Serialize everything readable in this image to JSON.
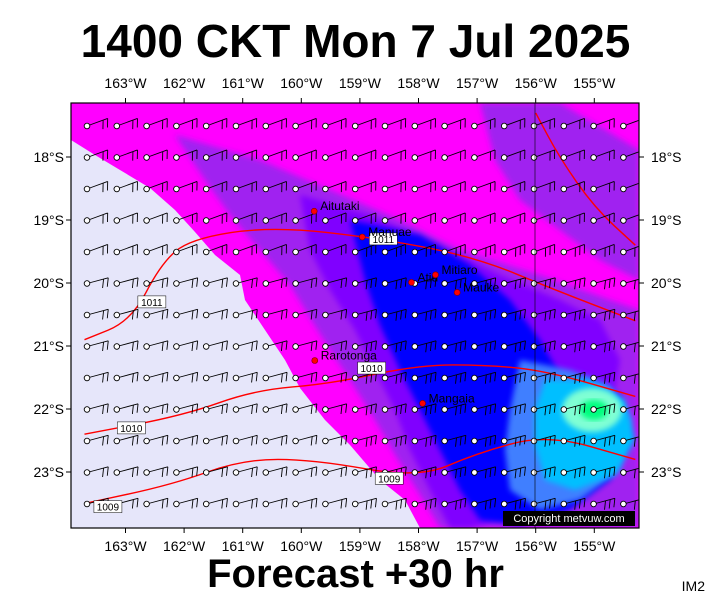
{
  "title": "1400 CKT Mon 7 Jul 2025",
  "footer": "Forecast +30 hr",
  "image_id": "IM2",
  "copyright": "Copyright metvuw.com",
  "lon_labels": [
    "163°W",
    "162°W",
    "161°W",
    "160°W",
    "159°W",
    "158°W",
    "157°W",
    "156°W",
    "155°W"
  ],
  "lat_labels": [
    "18°S",
    "19°S",
    "20°S",
    "21°S",
    "22°S",
    "23°S"
  ],
  "places": [
    {
      "name": "Aitutaki",
      "lon": -159.78,
      "lat": -18.86
    },
    {
      "name": "Manuae",
      "lon": -158.96,
      "lat": -19.27
    },
    {
      "name": "Atiu",
      "lon": -158.12,
      "lat": -19.99
    },
    {
      "name": "Mitiaro",
      "lon": -157.71,
      "lat": -19.87
    },
    {
      "name": "Mauke",
      "lon": -157.34,
      "lat": -20.15
    },
    {
      "name": "Rarotonga",
      "lon": -159.77,
      "lat": -21.23
    },
    {
      "name": "Mangaia",
      "lon": -157.93,
      "lat": -21.91
    }
  ],
  "isobars": [
    {
      "label": "1011",
      "points": [
        [
          -163.7,
          -20.9
        ],
        [
          -162.9,
          -20.6
        ],
        [
          -162.4,
          -19.7
        ],
        [
          -161.9,
          -19.3
        ],
        [
          -160.5,
          -19.1
        ],
        [
          -158.6,
          -19.3
        ],
        [
          -157.0,
          -19.6
        ],
        [
          -155.7,
          -20.1
        ],
        [
          -154.3,
          -20.6
        ]
      ]
    },
    {
      "label": "1010",
      "points": [
        [
          -163.7,
          -22.4
        ],
        [
          -162.0,
          -22.1
        ],
        [
          -160.8,
          -21.7
        ],
        [
          -159.5,
          -21.6
        ],
        [
          -158.0,
          -21.3
        ],
        [
          -156.8,
          -21.3
        ],
        [
          -155.8,
          -21.4
        ],
        [
          -154.3,
          -21.8
        ]
      ]
    },
    {
      "label": "1009",
      "points": [
        [
          -163.7,
          -23.5
        ],
        [
          -162.2,
          -23.2
        ],
        [
          -161.0,
          -22.8
        ],
        [
          -159.8,
          -22.8
        ],
        [
          -158.0,
          -23.1
        ],
        [
          -157.0,
          -22.7
        ],
        [
          -155.8,
          -22.4
        ],
        [
          -154.3,
          -22.8
        ]
      ]
    },
    {
      "label": "",
      "points": [
        [
          -156.0,
          -17.3
        ],
        [
          -155.6,
          -18.0
        ],
        [
          -155.0,
          -18.8
        ],
        [
          -154.3,
          -19.4
        ]
      ]
    }
  ],
  "isobar_label_positions": [
    {
      "label": "1011",
      "lon": -162.55,
      "lat": -20.3
    },
    {
      "label": "1011",
      "lon": -158.6,
      "lat": -19.3
    },
    {
      "label": "1010",
      "lon": -162.9,
      "lat": -22.3
    },
    {
      "label": "1010",
      "lon": -158.8,
      "lat": -21.35
    },
    {
      "label": "1009",
      "lon": -158.5,
      "lat": -23.1
    },
    {
      "label": "1009",
      "lon": -163.3,
      "lat": -23.55
    }
  ],
  "colors": {
    "land": "#e6e6fa",
    "magenta": "#ff00ff",
    "violet": "#a020f0",
    "purple": "#8000ff",
    "blue": "#0000ff",
    "lightblue": "#4169e1",
    "cyan": "#00bfff",
    "isobar": "#ff0000",
    "place": "#ff0000"
  }
}
